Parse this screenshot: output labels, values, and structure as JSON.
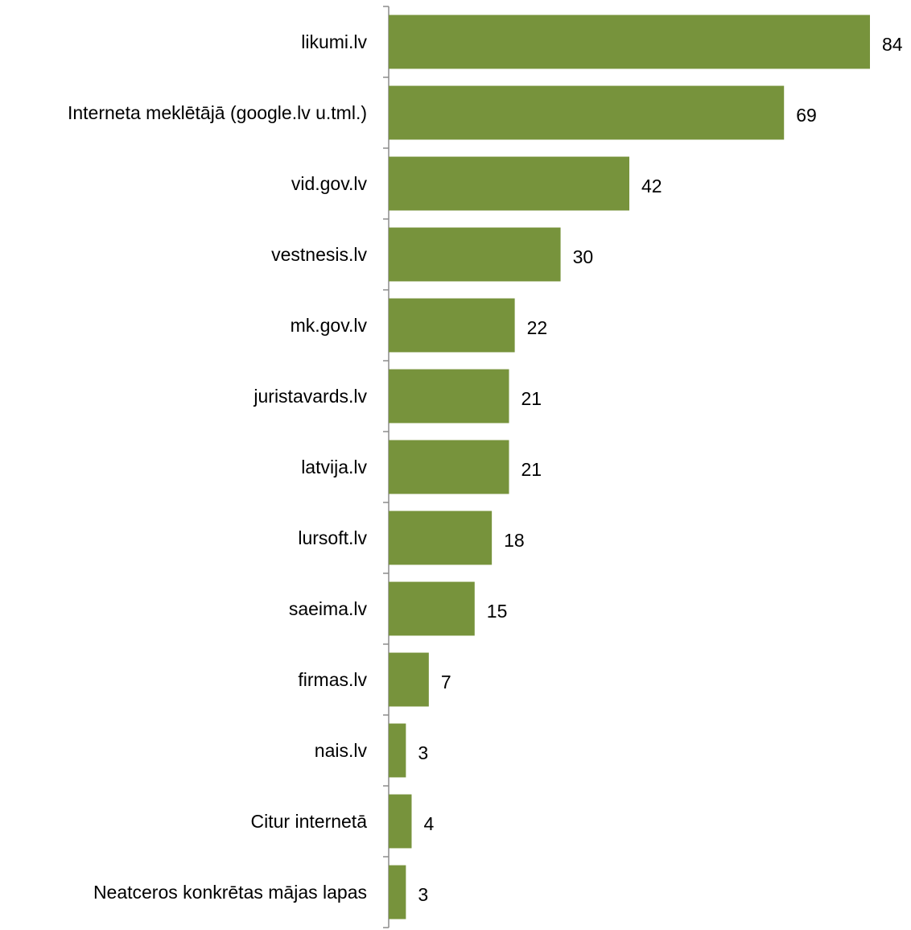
{
  "chart_data": {
    "type": "bar",
    "orientation": "horizontal",
    "categories": [
      "likumi.lv",
      "Interneta meklētājā (google.lv u.tml.)",
      "vid.gov.lv",
      "vestnesis.lv",
      "mk.gov.lv",
      "juristavards.lv",
      "latvija.lv",
      "lursoft.lv",
      "saeima.lv",
      "firmas.lv",
      "nais.lv",
      "Citur internetā",
      "Neatceros konkrētas mājas lapas"
    ],
    "values": [
      84,
      69,
      42,
      30,
      22,
      21,
      21,
      18,
      15,
      7,
      3,
      4,
      3
    ],
    "xlim": [
      0,
      84
    ],
    "grid": false,
    "legend": "none",
    "data_labels": true,
    "bar_color": "#77933c"
  }
}
